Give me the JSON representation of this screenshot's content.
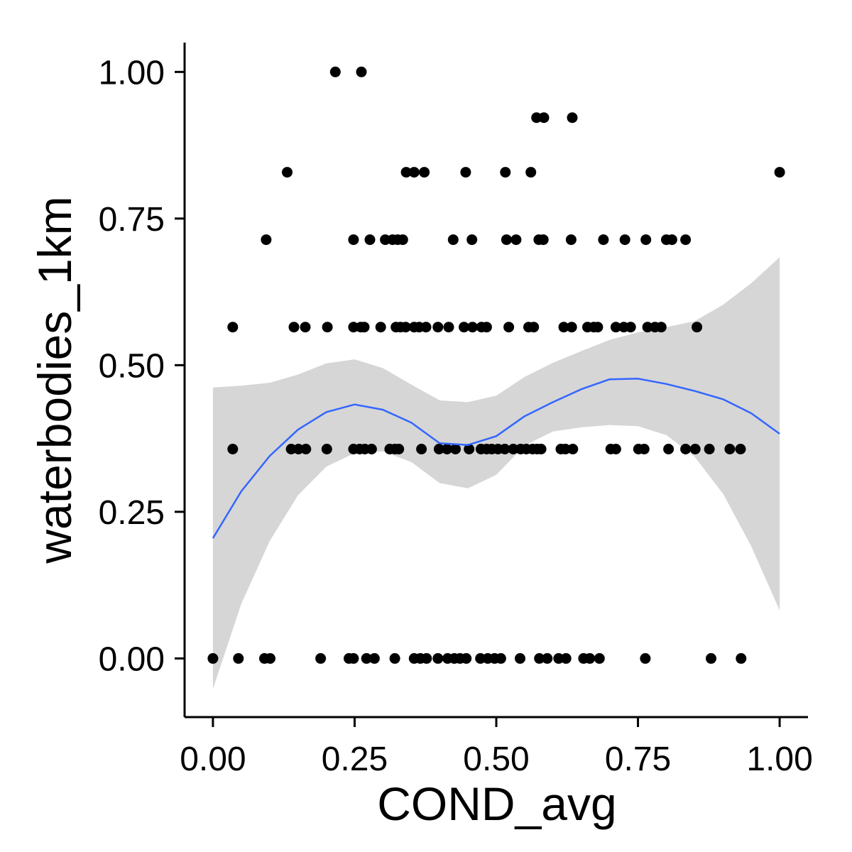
{
  "chart_data": {
    "type": "scatter",
    "xlabel": "COND_avg",
    "ylabel": "waterbodies_1km",
    "xlim": [
      -0.05,
      1.05
    ],
    "ylim": [
      -0.1,
      1.05
    ],
    "x_ticks": [
      "0.00",
      "0.25",
      "0.50",
      "0.75",
      "1.00"
    ],
    "y_ticks": [
      "0.00",
      "0.25",
      "0.50",
      "0.75",
      "1.00"
    ],
    "x_tick_values": [
      0,
      0.25,
      0.5,
      0.75,
      1.0
    ],
    "y_tick_values": [
      0,
      0.25,
      0.5,
      0.75,
      1.0
    ],
    "grid": false,
    "colors": {
      "points": "#000000",
      "smooth_line": "#3366FF",
      "ribbon": "#999999",
      "axis": "#000000"
    },
    "points": [
      {
        "x": 0.216,
        "y": 1.0
      },
      {
        "x": 0.262,
        "y": 1.0
      },
      {
        "x": 0.571,
        "y": 0.922
      },
      {
        "x": 0.584,
        "y": 0.922
      },
      {
        "x": 0.634,
        "y": 0.922
      },
      {
        "x": 0.131,
        "y": 0.829
      },
      {
        "x": 0.341,
        "y": 0.829
      },
      {
        "x": 0.355,
        "y": 0.829
      },
      {
        "x": 0.373,
        "y": 0.829
      },
      {
        "x": 0.446,
        "y": 0.829
      },
      {
        "x": 0.516,
        "y": 0.829
      },
      {
        "x": 0.561,
        "y": 0.829
      },
      {
        "x": 1.0,
        "y": 0.829
      },
      {
        "x": 0.094,
        "y": 0.714
      },
      {
        "x": 0.248,
        "y": 0.714
      },
      {
        "x": 0.277,
        "y": 0.714
      },
      {
        "x": 0.304,
        "y": 0.714
      },
      {
        "x": 0.317,
        "y": 0.714
      },
      {
        "x": 0.326,
        "y": 0.714
      },
      {
        "x": 0.335,
        "y": 0.714
      },
      {
        "x": 0.424,
        "y": 0.714
      },
      {
        "x": 0.457,
        "y": 0.714
      },
      {
        "x": 0.518,
        "y": 0.714
      },
      {
        "x": 0.535,
        "y": 0.714
      },
      {
        "x": 0.575,
        "y": 0.714
      },
      {
        "x": 0.583,
        "y": 0.714
      },
      {
        "x": 0.632,
        "y": 0.714
      },
      {
        "x": 0.689,
        "y": 0.714
      },
      {
        "x": 0.727,
        "y": 0.714
      },
      {
        "x": 0.764,
        "y": 0.714
      },
      {
        "x": 0.8,
        "y": 0.714
      },
      {
        "x": 0.81,
        "y": 0.714
      },
      {
        "x": 0.834,
        "y": 0.714
      },
      {
        "x": 0.035,
        "y": 0.565
      },
      {
        "x": 0.143,
        "y": 0.565
      },
      {
        "x": 0.163,
        "y": 0.565
      },
      {
        "x": 0.202,
        "y": 0.565
      },
      {
        "x": 0.248,
        "y": 0.565
      },
      {
        "x": 0.261,
        "y": 0.565
      },
      {
        "x": 0.267,
        "y": 0.565
      },
      {
        "x": 0.296,
        "y": 0.565
      },
      {
        "x": 0.323,
        "y": 0.565
      },
      {
        "x": 0.331,
        "y": 0.565
      },
      {
        "x": 0.34,
        "y": 0.565
      },
      {
        "x": 0.355,
        "y": 0.565
      },
      {
        "x": 0.364,
        "y": 0.565
      },
      {
        "x": 0.376,
        "y": 0.565
      },
      {
        "x": 0.397,
        "y": 0.565
      },
      {
        "x": 0.416,
        "y": 0.565
      },
      {
        "x": 0.443,
        "y": 0.565
      },
      {
        "x": 0.458,
        "y": 0.565
      },
      {
        "x": 0.474,
        "y": 0.565
      },
      {
        "x": 0.483,
        "y": 0.565
      },
      {
        "x": 0.522,
        "y": 0.565
      },
      {
        "x": 0.557,
        "y": 0.565
      },
      {
        "x": 0.566,
        "y": 0.565
      },
      {
        "x": 0.619,
        "y": 0.565
      },
      {
        "x": 0.633,
        "y": 0.565
      },
      {
        "x": 0.661,
        "y": 0.565
      },
      {
        "x": 0.672,
        "y": 0.565
      },
      {
        "x": 0.679,
        "y": 0.565
      },
      {
        "x": 0.711,
        "y": 0.565
      },
      {
        "x": 0.725,
        "y": 0.565
      },
      {
        "x": 0.737,
        "y": 0.565
      },
      {
        "x": 0.767,
        "y": 0.565
      },
      {
        "x": 0.78,
        "y": 0.565
      },
      {
        "x": 0.791,
        "y": 0.565
      },
      {
        "x": 0.854,
        "y": 0.565
      },
      {
        "x": 0.035,
        "y": 0.357
      },
      {
        "x": 0.138,
        "y": 0.357
      },
      {
        "x": 0.151,
        "y": 0.357
      },
      {
        "x": 0.164,
        "y": 0.357
      },
      {
        "x": 0.201,
        "y": 0.357
      },
      {
        "x": 0.248,
        "y": 0.357
      },
      {
        "x": 0.259,
        "y": 0.357
      },
      {
        "x": 0.268,
        "y": 0.357
      },
      {
        "x": 0.28,
        "y": 0.357
      },
      {
        "x": 0.312,
        "y": 0.357
      },
      {
        "x": 0.321,
        "y": 0.357
      },
      {
        "x": 0.328,
        "y": 0.357
      },
      {
        "x": 0.368,
        "y": 0.357
      },
      {
        "x": 0.399,
        "y": 0.357
      },
      {
        "x": 0.413,
        "y": 0.357
      },
      {
        "x": 0.428,
        "y": 0.357
      },
      {
        "x": 0.452,
        "y": 0.357
      },
      {
        "x": 0.473,
        "y": 0.357
      },
      {
        "x": 0.483,
        "y": 0.357
      },
      {
        "x": 0.492,
        "y": 0.357
      },
      {
        "x": 0.503,
        "y": 0.357
      },
      {
        "x": 0.515,
        "y": 0.357
      },
      {
        "x": 0.53,
        "y": 0.357
      },
      {
        "x": 0.543,
        "y": 0.357
      },
      {
        "x": 0.553,
        "y": 0.357
      },
      {
        "x": 0.564,
        "y": 0.357
      },
      {
        "x": 0.572,
        "y": 0.357
      },
      {
        "x": 0.579,
        "y": 0.357
      },
      {
        "x": 0.614,
        "y": 0.357
      },
      {
        "x": 0.622,
        "y": 0.357
      },
      {
        "x": 0.635,
        "y": 0.357
      },
      {
        "x": 0.702,
        "y": 0.357
      },
      {
        "x": 0.711,
        "y": 0.357
      },
      {
        "x": 0.751,
        "y": 0.357
      },
      {
        "x": 0.761,
        "y": 0.357
      },
      {
        "x": 0.804,
        "y": 0.357
      },
      {
        "x": 0.834,
        "y": 0.357
      },
      {
        "x": 0.851,
        "y": 0.357
      },
      {
        "x": 0.876,
        "y": 0.357
      },
      {
        "x": 0.912,
        "y": 0.357
      },
      {
        "x": 0.931,
        "y": 0.357
      },
      {
        "x": 0.0,
        "y": 0.0
      },
      {
        "x": 0.045,
        "y": 0.0
      },
      {
        "x": 0.091,
        "y": 0.0
      },
      {
        "x": 0.101,
        "y": 0.0
      },
      {
        "x": 0.19,
        "y": 0.0
      },
      {
        "x": 0.24,
        "y": 0.0
      },
      {
        "x": 0.248,
        "y": 0.0
      },
      {
        "x": 0.271,
        "y": 0.0
      },
      {
        "x": 0.285,
        "y": 0.0
      },
      {
        "x": 0.321,
        "y": 0.0
      },
      {
        "x": 0.355,
        "y": 0.0
      },
      {
        "x": 0.366,
        "y": 0.0
      },
      {
        "x": 0.377,
        "y": 0.0
      },
      {
        "x": 0.397,
        "y": 0.0
      },
      {
        "x": 0.414,
        "y": 0.0
      },
      {
        "x": 0.426,
        "y": 0.0
      },
      {
        "x": 0.436,
        "y": 0.0
      },
      {
        "x": 0.447,
        "y": 0.0
      },
      {
        "x": 0.472,
        "y": 0.0
      },
      {
        "x": 0.485,
        "y": 0.0
      },
      {
        "x": 0.497,
        "y": 0.0
      },
      {
        "x": 0.508,
        "y": 0.0
      },
      {
        "x": 0.542,
        "y": 0.0
      },
      {
        "x": 0.576,
        "y": 0.0
      },
      {
        "x": 0.59,
        "y": 0.0
      },
      {
        "x": 0.61,
        "y": 0.0
      },
      {
        "x": 0.623,
        "y": 0.0
      },
      {
        "x": 0.654,
        "y": 0.0
      },
      {
        "x": 0.665,
        "y": 0.0
      },
      {
        "x": 0.682,
        "y": 0.0
      },
      {
        "x": 0.763,
        "y": 0.0
      },
      {
        "x": 0.879,
        "y": 0.0
      },
      {
        "x": 0.932,
        "y": 0.0
      }
    ],
    "smooth": {
      "x": [
        0.0,
        0.05,
        0.1,
        0.15,
        0.2,
        0.25,
        0.3,
        0.35,
        0.4,
        0.45,
        0.5,
        0.55,
        0.6,
        0.65,
        0.7,
        0.75,
        0.8,
        0.85,
        0.9,
        0.95,
        1.0
      ],
      "y": [
        0.205,
        0.285,
        0.345,
        0.39,
        0.42,
        0.433,
        0.424,
        0.402,
        0.367,
        0.364,
        0.379,
        0.413,
        0.437,
        0.459,
        0.476,
        0.477,
        0.468,
        0.456,
        0.442,
        0.418,
        0.383
      ],
      "lower": [
        -0.052,
        0.093,
        0.2,
        0.278,
        0.327,
        0.35,
        0.353,
        0.335,
        0.299,
        0.29,
        0.313,
        0.363,
        0.387,
        0.394,
        0.398,
        0.396,
        0.381,
        0.344,
        0.281,
        0.191,
        0.082
      ],
      "upper": [
        0.462,
        0.465,
        0.47,
        0.484,
        0.503,
        0.51,
        0.495,
        0.467,
        0.44,
        0.437,
        0.448,
        0.48,
        0.504,
        0.524,
        0.543,
        0.556,
        0.565,
        0.575,
        0.603,
        0.64,
        0.684
      ]
    }
  }
}
